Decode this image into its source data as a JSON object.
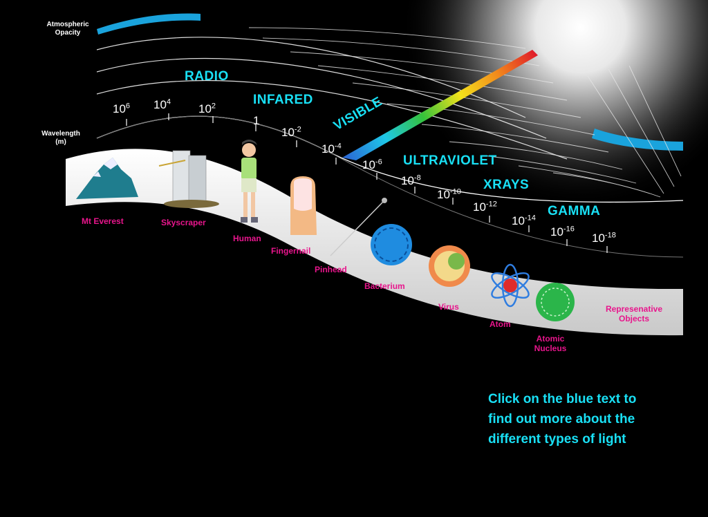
{
  "atmosphere_label": [
    "Atmospheric",
    "Opacity"
  ],
  "wavelength_label": [
    "Wavelength",
    "(m)"
  ],
  "bands": [
    {
      "label": "RADIO"
    },
    {
      "label": "INFARED"
    },
    {
      "label": "VISIBLE"
    },
    {
      "label": "ULTRAVIOLET"
    },
    {
      "label": "XRAYS"
    },
    {
      "label": "GAMMA"
    }
  ],
  "wavelength_ticks": [
    {
      "base": "10",
      "exp": "6"
    },
    {
      "base": "10",
      "exp": "4"
    },
    {
      "base": "10",
      "exp": "2"
    },
    {
      "base": "1",
      "exp": ""
    },
    {
      "base": "10",
      "exp": "-2"
    },
    {
      "base": "10",
      "exp": "-4"
    },
    {
      "base": "10",
      "exp": "-6"
    },
    {
      "base": "10",
      "exp": "-8"
    },
    {
      "base": "10",
      "exp": "-10"
    },
    {
      "base": "10",
      "exp": "-12"
    },
    {
      "base": "10",
      "exp": "-14"
    },
    {
      "base": "10",
      "exp": "-16"
    },
    {
      "base": "10",
      "exp": "-18"
    }
  ],
  "objects": [
    {
      "label": "Mt Everest"
    },
    {
      "label": "Skyscraper"
    },
    {
      "label": "Human"
    },
    {
      "label": "Fingernail"
    },
    {
      "label": "Pinhead"
    },
    {
      "label": "Bacterium"
    },
    {
      "label": "Virus"
    },
    {
      "label": "Atom"
    },
    {
      "label": "Atomic Nucleus"
    },
    {
      "label": "Represenative Objects"
    }
  ],
  "instruction": [
    "Click on the blue text to",
    "find out more about the",
    "different types of light"
  ],
  "colors": {
    "band_text": "#19e0f5",
    "object_text": "#e8158c",
    "opacity_bar": "#1aa3dc",
    "background": "#000000"
  }
}
